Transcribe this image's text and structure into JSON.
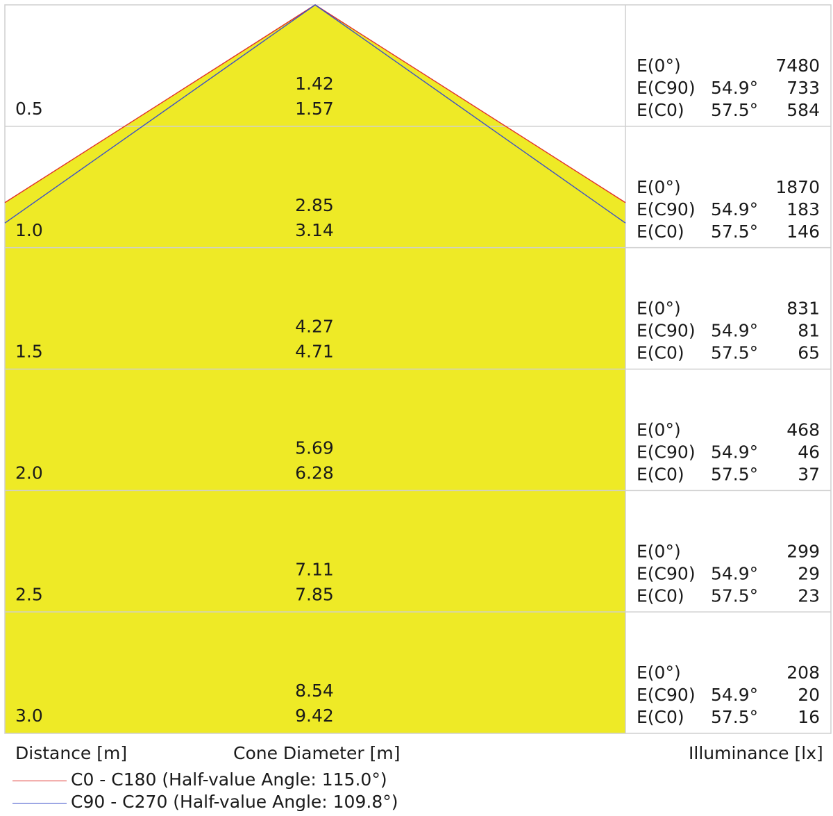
{
  "chart_data": {
    "type": "area",
    "xlabel": "Cone Diameter [m]",
    "ylabel": "Distance [m]",
    "right_label": "Illuminance [lx]",
    "colors": {
      "fill": "#EEEA26",
      "c0": "#E0312B",
      "c90": "#3A4FC9",
      "grid": "#CFCFCF"
    },
    "series": [
      {
        "name": "C0 - C180 (Half-value Angle: 115.0°)",
        "color": "#E0312B",
        "half_angle_deg": 115.0
      },
      {
        "name": "C90 - C270 (Half-value Angle: 109.8°)",
        "color": "#3A4FC9",
        "half_angle_deg": 109.8
      }
    ],
    "rows": [
      {
        "distance": "0.5",
        "d_c90": "1.42",
        "d_c0": "1.57",
        "e0": "7480",
        "ang90": "54.9°",
        "e90": "733",
        "ang0": "57.5°",
        "ec0": "584"
      },
      {
        "distance": "1.0",
        "d_c90": "2.85",
        "d_c0": "3.14",
        "e0": "1870",
        "ang90": "54.9°",
        "e90": "183",
        "ang0": "57.5°",
        "ec0": "146"
      },
      {
        "distance": "1.5",
        "d_c90": "4.27",
        "d_c0": "4.71",
        "e0": "831",
        "ang90": "54.9°",
        "e90": "81",
        "ang0": "57.5°",
        "ec0": "65"
      },
      {
        "distance": "2.0",
        "d_c90": "5.69",
        "d_c0": "6.28",
        "e0": "468",
        "ang90": "54.9°",
        "e90": "46",
        "ang0": "57.5°",
        "ec0": "37"
      },
      {
        "distance": "2.5",
        "d_c90": "7.11",
        "d_c0": "7.85",
        "e0": "299",
        "ang90": "54.9°",
        "e90": "29",
        "ang0": "57.5°",
        "ec0": "23"
      },
      {
        "distance": "3.0",
        "d_c90": "8.54",
        "d_c0": "9.42",
        "e0": "208",
        "ang90": "54.9°",
        "e90": "20",
        "ang0": "57.5°",
        "ec0": "16"
      }
    ],
    "labels": {
      "e0": "E(0°)",
      "e90": "E(C90)",
      "ec0": "E(C0)"
    }
  }
}
